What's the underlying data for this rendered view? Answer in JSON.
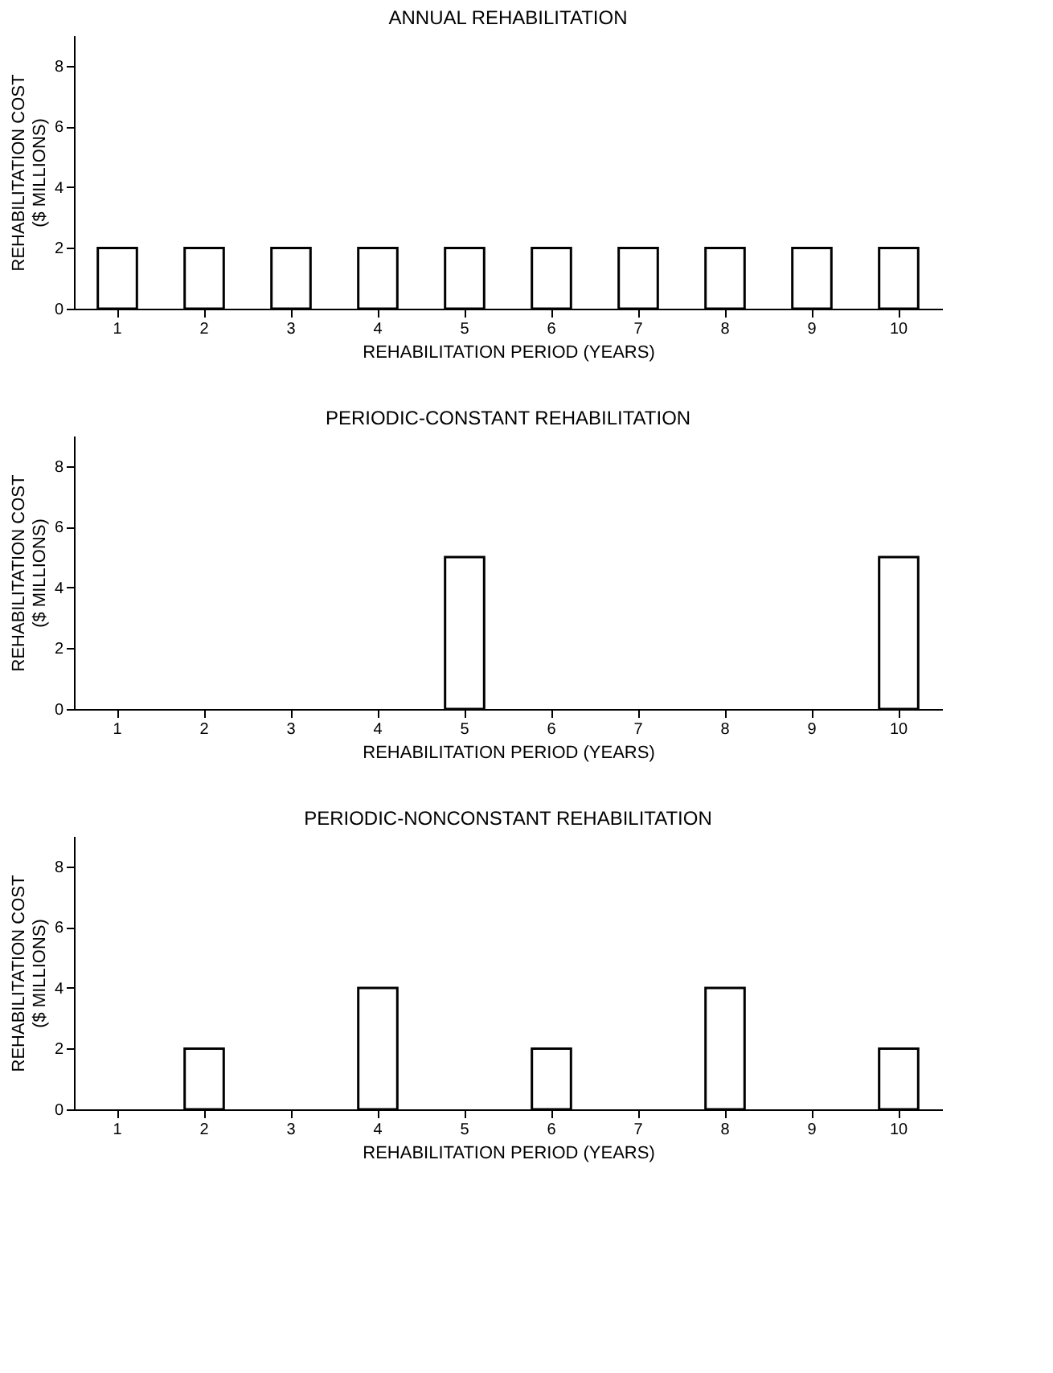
{
  "chart_data": [
    {
      "type": "bar",
      "title": "ANNUAL REHABILITATION",
      "xlabel": "REHABILITATION PERIOD (YEARS)",
      "ylabel": "REHABILITATION COST\n($ MILLIONS)",
      "categories": [
        "1",
        "2",
        "3",
        "4",
        "5",
        "6",
        "7",
        "8",
        "9",
        "10"
      ],
      "values": [
        2,
        2,
        2,
        2,
        2,
        2,
        2,
        2,
        2,
        2
      ],
      "color": "#ffffff",
      "ylim": [
        0,
        9
      ],
      "yticks": [
        0,
        2,
        4,
        6,
        8
      ],
      "grid": false
    },
    {
      "type": "bar",
      "title": "PERIODIC-CONSTANT REHABILITATION",
      "xlabel": "REHABILITATION PERIOD (YEARS)",
      "ylabel": "REHABILITATION COST\n($ MILLIONS)",
      "categories": [
        "1",
        "2",
        "3",
        "4",
        "5",
        "6",
        "7",
        "8",
        "9",
        "10"
      ],
      "values": [
        null,
        null,
        null,
        null,
        5,
        null,
        null,
        null,
        null,
        5
      ],
      "color": "#ffffff",
      "ylim": [
        0,
        9
      ],
      "yticks": [
        0,
        2,
        4,
        6,
        8
      ],
      "grid": false
    },
    {
      "type": "bar",
      "title": "PERIODIC-NONCONSTANT REHABILITATION",
      "xlabel": "REHABILITATION PERIOD (YEARS)",
      "ylabel": "REHABILITATION COST\n($ MILLIONS)",
      "categories": [
        "1",
        "2",
        "3",
        "4",
        "5",
        "6",
        "7",
        "8",
        "9",
        "10"
      ],
      "values": [
        null,
        2,
        null,
        4,
        null,
        2,
        null,
        4,
        null,
        2
      ],
      "color": "#ffffff",
      "ylim": [
        0,
        9
      ],
      "yticks": [
        0,
        2,
        4,
        6,
        8
      ],
      "grid": false
    }
  ]
}
